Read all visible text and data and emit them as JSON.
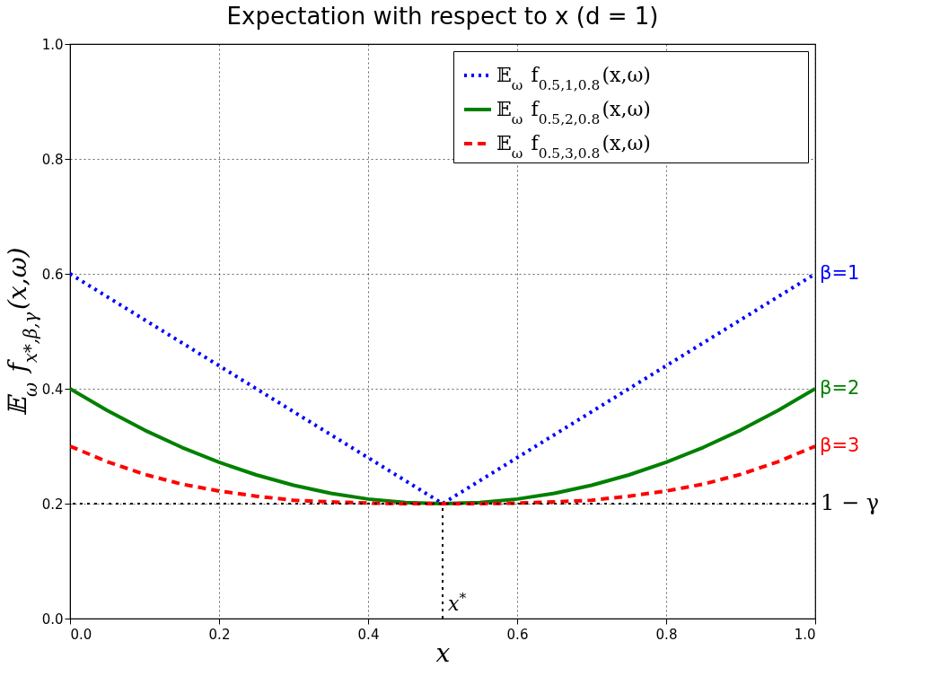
{
  "chart_data": {
    "type": "line",
    "title": "Expectation with respect to x (d = 1)",
    "xlabel": "x",
    "ylabel": "𝔼$_{ω}$ f$_{x*,β,γ}$(x,ω)",
    "x": [
      0,
      0.05,
      0.1,
      0.15,
      0.2,
      0.25,
      0.3,
      0.35,
      0.4,
      0.45,
      0.5,
      0.55,
      0.6,
      0.65,
      0.7,
      0.75,
      0.8,
      0.85,
      0.9,
      0.95,
      1.0
    ],
    "series": [
      {
        "name": "𝔼$_{ω}$ f$_{0.5,1,0.8}$(x,ω)",
        "color": "#0000ff",
        "line_style": "dotted",
        "values": [
          0.6,
          0.56,
          0.52,
          0.48,
          0.44,
          0.4,
          0.36,
          0.32,
          0.28,
          0.24,
          0.2,
          0.24,
          0.28,
          0.32,
          0.36,
          0.4,
          0.44,
          0.48,
          0.52,
          0.56,
          0.6
        ]
      },
      {
        "name": "𝔼$_{ω}$ f$_{0.5,2,0.8}$(x,ω)",
        "color": "#008000",
        "line_style": "solid",
        "values": [
          0.4,
          0.362,
          0.328,
          0.298,
          0.272,
          0.25,
          0.232,
          0.218,
          0.208,
          0.202,
          0.2,
          0.202,
          0.208,
          0.218,
          0.232,
          0.25,
          0.272,
          0.298,
          0.328,
          0.362,
          0.4
        ]
      },
      {
        "name": "𝔼$_{ω}$ f$_{0.5,3,0.8}$(x,ω)",
        "color": "#ff0000",
        "line_style": "dashed",
        "values": [
          0.3,
          0.273,
          0.251,
          0.234,
          0.222,
          0.213,
          0.206,
          0.203,
          0.201,
          0.2,
          0.2,
          0.2,
          0.201,
          0.203,
          0.206,
          0.213,
          0.222,
          0.234,
          0.251,
          0.273,
          0.3
        ]
      }
    ],
    "annotations": [
      "β=1",
      "β=2",
      "β=3"
    ],
    "ref_lines": [
      {
        "axis": "y",
        "value": 0.2,
        "label": "1 − γ",
        "color": "#000000",
        "line_style": "dotted"
      },
      {
        "axis": "x",
        "value": 0.5,
        "label": "x$^{*}$",
        "color": "#000000",
        "line_style": "dotted"
      }
    ],
    "xlim": [
      0,
      1
    ],
    "ylim": [
      0,
      1
    ],
    "xticks": [
      {
        "value": 0,
        "label": "0.0"
      },
      0.2,
      0.4,
      0.6,
      0.8,
      {
        "value": 1,
        "label": "1.0"
      }
    ],
    "yticks": [
      {
        "value": 0,
        "label": "0.0"
      },
      0.2,
      0.4,
      0.6,
      0.8,
      {
        "value": 1,
        "label": "1.0"
      }
    ],
    "grid": true,
    "legend": "top right",
    "tick_labels": "xy"
  }
}
